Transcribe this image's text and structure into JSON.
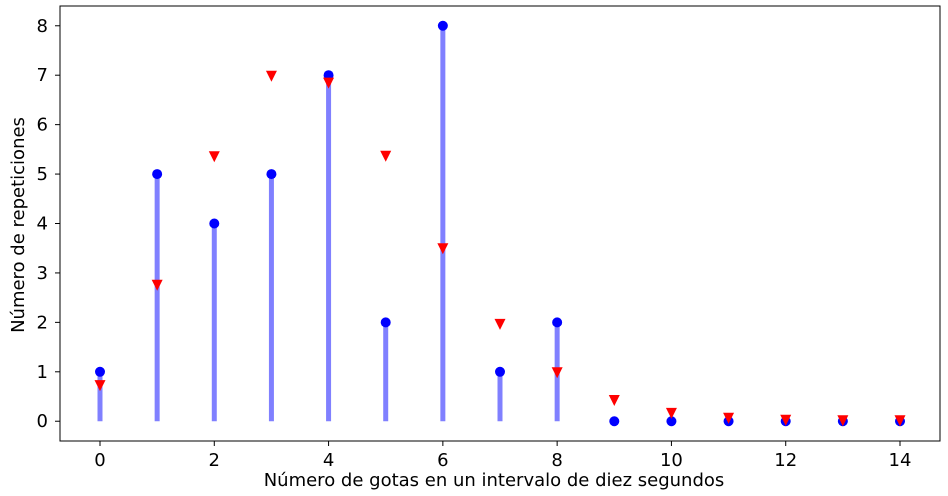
{
  "chart_data": {
    "type": "scatter",
    "title": "",
    "xlabel": "Número de gotas en un intervalo de diez segundos",
    "ylabel": "Número de repeticiones",
    "xlim": [
      -0.7,
      14.7
    ],
    "ylim": [
      -0.4,
      8.4
    ],
    "xticks": [
      0,
      2,
      4,
      6,
      8,
      10,
      12,
      14
    ],
    "yticks": [
      0,
      1,
      2,
      3,
      4,
      5,
      6,
      7,
      8
    ],
    "grid": false,
    "series": [
      {
        "kind": "stem",
        "color": "#0000ff",
        "stem_color": "#8080ff",
        "marker": "circle",
        "x": [
          0,
          1,
          2,
          3,
          4,
          5,
          6,
          7,
          8,
          9,
          10,
          11,
          12,
          13,
          14
        ],
        "values": [
          1,
          5,
          4,
          5,
          7,
          2,
          8,
          1,
          2,
          0,
          0,
          0,
          0,
          0,
          0
        ]
      },
      {
        "kind": "scatter",
        "color": "#ff0000",
        "marker": "triangle-down",
        "x": [
          0,
          1,
          2,
          3,
          4,
          5,
          6,
          7,
          8,
          9,
          10,
          11,
          12,
          13,
          14
        ],
        "values": [
          0.72,
          2.75,
          5.35,
          6.98,
          6.84,
          5.36,
          3.49,
          1.96,
          0.98,
          0.42,
          0.16,
          0.06,
          0.02,
          0.01,
          0.01
        ]
      }
    ]
  }
}
